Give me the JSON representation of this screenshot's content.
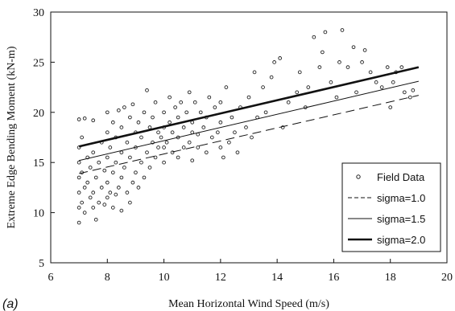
{
  "chart_data": {
    "type": "scatter",
    "panel_label": "(a)",
    "xlabel": "Mean Horizontal Wind Speed (m/s)",
    "ylabel": "Extreme Edge Bending Moment (kN-m)",
    "xlim": [
      6,
      20
    ],
    "ylim": [
      5,
      30
    ],
    "xticks": [
      6,
      8,
      10,
      12,
      14,
      16,
      18,
      20
    ],
    "yticks": [
      5,
      10,
      15,
      20,
      25,
      30
    ],
    "grid": false,
    "legend_position": "bottom-right",
    "legend": [
      {
        "name": "Field Data",
        "style": "marker"
      },
      {
        "name": "sigma=1.0",
        "style": "dashed"
      },
      {
        "name": "sigma=1.5",
        "style": "thin"
      },
      {
        "name": "sigma=2.0",
        "style": "thick"
      }
    ],
    "series": [
      {
        "name": "Field Data",
        "kind": "scatter",
        "points": [
          [
            7.0,
            9.0
          ],
          [
            7.0,
            10.5
          ],
          [
            7.0,
            12.0
          ],
          [
            7.0,
            13.5
          ],
          [
            7.0,
            15.0
          ],
          [
            7.0,
            16.5
          ],
          [
            7.0,
            19.3
          ],
          [
            7.1,
            11.0
          ],
          [
            7.1,
            14.0
          ],
          [
            7.1,
            17.5
          ],
          [
            7.2,
            10.0
          ],
          [
            7.2,
            12.5
          ],
          [
            7.2,
            19.4
          ],
          [
            7.3,
            13.0
          ],
          [
            7.3,
            15.5
          ],
          [
            7.4,
            11.5
          ],
          [
            7.4,
            14.5
          ],
          [
            7.5,
            10.5
          ],
          [
            7.5,
            12.0
          ],
          [
            7.5,
            16.0
          ],
          [
            7.5,
            19.2
          ],
          [
            7.6,
            9.3
          ],
          [
            7.6,
            13.5
          ],
          [
            7.7,
            11.0
          ],
          [
            7.7,
            15.0
          ],
          [
            7.8,
            12.5
          ],
          [
            7.8,
            17.0
          ],
          [
            7.9,
            10.8
          ],
          [
            7.9,
            14.2
          ],
          [
            8.0,
            11.5
          ],
          [
            8.0,
            13.0
          ],
          [
            8.0,
            15.5
          ],
          [
            8.0,
            18.0
          ],
          [
            8.0,
            20.0
          ],
          [
            8.1,
            12.0
          ],
          [
            8.1,
            16.5
          ],
          [
            8.2,
            10.5
          ],
          [
            8.2,
            14.0
          ],
          [
            8.2,
            19.0
          ],
          [
            8.3,
            11.8
          ],
          [
            8.3,
            15.0
          ],
          [
            8.3,
            17.5
          ],
          [
            8.4,
            12.5
          ],
          [
            8.4,
            20.2
          ],
          [
            8.5,
            10.2
          ],
          [
            8.5,
            13.5
          ],
          [
            8.5,
            16.0
          ],
          [
            8.5,
            18.5
          ],
          [
            8.6,
            14.5
          ],
          [
            8.6,
            20.5
          ],
          [
            8.7,
            12.0
          ],
          [
            8.7,
            17.0
          ],
          [
            8.8,
            11.0
          ],
          [
            8.8,
            15.5
          ],
          [
            8.8,
            19.5
          ],
          [
            8.9,
            13.0
          ],
          [
            8.9,
            20.8
          ],
          [
            9.0,
            14.0
          ],
          [
            9.0,
            16.5
          ],
          [
            9.0,
            18.0
          ],
          [
            9.1,
            12.5
          ],
          [
            9.1,
            19.0
          ],
          [
            9.2,
            15.0
          ],
          [
            9.2,
            17.5
          ],
          [
            9.3,
            13.5
          ],
          [
            9.3,
            20.0
          ],
          [
            9.4,
            16.0
          ],
          [
            9.4,
            22.2
          ],
          [
            9.5,
            14.5
          ],
          [
            9.5,
            18.5
          ],
          [
            9.6,
            17.0
          ],
          [
            9.6,
            19.5
          ],
          [
            9.7,
            15.5
          ],
          [
            9.7,
            21.0
          ],
          [
            9.8,
            16.5
          ],
          [
            9.8,
            18.0
          ],
          [
            9.9,
            17.5
          ],
          [
            10.0,
            15.0
          ],
          [
            10.0,
            16.5
          ],
          [
            10.0,
            18.5
          ],
          [
            10.0,
            20.0
          ],
          [
            10.1,
            17.0
          ],
          [
            10.2,
            19.0
          ],
          [
            10.2,
            21.5
          ],
          [
            10.3,
            16.0
          ],
          [
            10.3,
            18.0
          ],
          [
            10.4,
            20.5
          ],
          [
            10.5,
            15.5
          ],
          [
            10.5,
            17.5
          ],
          [
            10.5,
            19.5
          ],
          [
            10.6,
            21.0
          ],
          [
            10.7,
            16.5
          ],
          [
            10.7,
            18.5
          ],
          [
            10.8,
            20.0
          ],
          [
            10.9,
            17.0
          ],
          [
            10.9,
            22.0
          ],
          [
            11.0,
            15.2
          ],
          [
            11.0,
            18.0
          ],
          [
            11.0,
            19.0
          ],
          [
            11.1,
            21.0
          ],
          [
            11.2,
            16.5
          ],
          [
            11.2,
            17.8
          ],
          [
            11.3,
            20.0
          ],
          [
            11.4,
            18.5
          ],
          [
            11.5,
            16.0
          ],
          [
            11.5,
            19.5
          ],
          [
            11.6,
            21.5
          ],
          [
            11.7,
            17.5
          ],
          [
            11.8,
            20.5
          ],
          [
            11.9,
            18.0
          ],
          [
            12.0,
            16.5
          ],
          [
            12.0,
            19.0
          ],
          [
            12.0,
            21.0
          ],
          [
            12.1,
            15.5
          ],
          [
            12.2,
            22.5
          ],
          [
            12.3,
            17.0
          ],
          [
            12.4,
            19.5
          ],
          [
            12.5,
            18.0
          ],
          [
            12.6,
            16.0
          ],
          [
            12.7,
            20.5
          ],
          [
            12.9,
            18.5
          ],
          [
            13.0,
            21.5
          ],
          [
            13.1,
            17.5
          ],
          [
            13.2,
            24.0
          ],
          [
            13.3,
            19.5
          ],
          [
            13.5,
            22.5
          ],
          [
            13.6,
            20.0
          ],
          [
            13.8,
            23.5
          ],
          [
            13.9,
            25.0
          ],
          [
            14.1,
            25.4
          ],
          [
            14.2,
            18.5
          ],
          [
            14.4,
            21.0
          ],
          [
            14.7,
            22.0
          ],
          [
            14.8,
            24.0
          ],
          [
            15.0,
            20.5
          ],
          [
            15.1,
            22.5
          ],
          [
            15.3,
            27.5
          ],
          [
            15.5,
            24.5
          ],
          [
            15.6,
            26.0
          ],
          [
            15.7,
            28.0
          ],
          [
            15.9,
            23.0
          ],
          [
            16.1,
            21.5
          ],
          [
            16.2,
            25.0
          ],
          [
            16.3,
            28.2
          ],
          [
            16.5,
            24.5
          ],
          [
            16.7,
            26.5
          ],
          [
            16.8,
            22.0
          ],
          [
            17.0,
            25.0
          ],
          [
            17.1,
            26.2
          ],
          [
            17.3,
            24.0
          ],
          [
            17.5,
            23.0
          ],
          [
            17.7,
            22.5
          ],
          [
            17.9,
            24.5
          ],
          [
            18.0,
            20.5
          ],
          [
            18.1,
            23.0
          ],
          [
            18.2,
            24.0
          ],
          [
            18.4,
            24.5
          ],
          [
            18.5,
            22.0
          ],
          [
            18.7,
            21.5
          ],
          [
            18.8,
            22.2
          ]
        ]
      },
      {
        "name": "sigma=1.0",
        "kind": "line",
        "style": "dashed",
        "x": [
          7,
          19
        ],
        "y": [
          13.9,
          21.7
        ]
      },
      {
        "name": "sigma=1.5",
        "kind": "line",
        "style": "thin",
        "x": [
          7,
          19
        ],
        "y": [
          15.2,
          23.1
        ]
      },
      {
        "name": "sigma=2.0",
        "kind": "line",
        "style": "thick",
        "x": [
          7,
          19
        ],
        "y": [
          16.6,
          24.5
        ]
      }
    ]
  }
}
